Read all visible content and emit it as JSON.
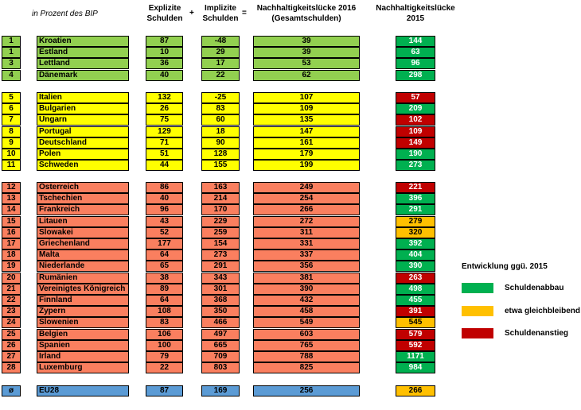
{
  "header": {
    "note": "in Prozent des BIP",
    "explicit": "Explizite\nSchulden",
    "plus": "+",
    "implicit": "Implizite\nSchulden",
    "equals": "=",
    "gap2016": "Nachhaltigkeitslücke 2016\n(Gesamtschulden)",
    "gap2015": "Nachhaltigkeitslücke\n2015"
  },
  "colors": {
    "green_group": "#92d050",
    "yellow_group": "#ffff00",
    "salmon_group": "#fa7f5f",
    "blue_group": "#5b9bd5",
    "abbau": "#00b050",
    "gleich": "#ffc000",
    "anstieg": "#c00000"
  },
  "legend": {
    "title": "Entwicklung ggü. 2015",
    "items": [
      {
        "label": "Schuldenabbau",
        "color": "#00b050"
      },
      {
        "label": "etwa gleichbleibend",
        "color": "#ffc000"
      },
      {
        "label": "Schuldenanstieg",
        "color": "#c00000"
      }
    ]
  },
  "chart_data": {
    "type": "table",
    "columns": [
      "Rang",
      "Land",
      "Explizite Schulden",
      "Implizite Schulden",
      "Nachhaltigkeitslücke 2016 (Gesamtschulden)",
      "Nachhaltigkeitslücke 2015"
    ],
    "rows": [
      {
        "rank": "1",
        "country": "Kroatien",
        "explicit": "87",
        "implicit": "-48",
        "gap2016": "39",
        "gap2015": "144",
        "group": "green",
        "trend": "abbau"
      },
      {
        "rank": "1",
        "country": "Estland",
        "explicit": "10",
        "implicit": "29",
        "gap2016": "39",
        "gap2015": "63",
        "group": "green",
        "trend": "abbau"
      },
      {
        "rank": "3",
        "country": "Lettland",
        "explicit": "36",
        "implicit": "17",
        "gap2016": "53",
        "gap2015": "96",
        "group": "green",
        "trend": "abbau"
      },
      {
        "rank": "4",
        "country": "Dänemark",
        "explicit": "40",
        "implicit": "22",
        "gap2016": "62",
        "gap2015": "298",
        "group": "green",
        "trend": "abbau"
      },
      {
        "rank": "5",
        "country": "Italien",
        "explicit": "132",
        "implicit": "-25",
        "gap2016": "107",
        "gap2015": "57",
        "group": "yellow",
        "trend": "anstieg"
      },
      {
        "rank": "6",
        "country": "Bulgarien",
        "explicit": "26",
        "implicit": "83",
        "gap2016": "109",
        "gap2015": "209",
        "group": "yellow",
        "trend": "abbau"
      },
      {
        "rank": "7",
        "country": "Ungarn",
        "explicit": "75",
        "implicit": "60",
        "gap2016": "135",
        "gap2015": "102",
        "group": "yellow",
        "trend": "anstieg"
      },
      {
        "rank": "8",
        "country": "Portugal",
        "explicit": "129",
        "implicit": "18",
        "gap2016": "147",
        "gap2015": "109",
        "group": "yellow",
        "trend": "anstieg"
      },
      {
        "rank": "9",
        "country": "Deutschland",
        "explicit": "71",
        "implicit": "90",
        "gap2016": "161",
        "gap2015": "149",
        "group": "yellow",
        "trend": "anstieg"
      },
      {
        "rank": "10",
        "country": "Polen",
        "explicit": "51",
        "implicit": "128",
        "gap2016": "179",
        "gap2015": "190",
        "group": "yellow",
        "trend": "abbau"
      },
      {
        "rank": "11",
        "country": "Schweden",
        "explicit": "44",
        "implicit": "155",
        "gap2016": "199",
        "gap2015": "273",
        "group": "yellow",
        "trend": "abbau"
      },
      {
        "rank": "12",
        "country": "Österreich",
        "explicit": "86",
        "implicit": "163",
        "gap2016": "249",
        "gap2015": "221",
        "group": "salmon",
        "trend": "anstieg"
      },
      {
        "rank": "13",
        "country": "Tschechien",
        "explicit": "40",
        "implicit": "214",
        "gap2016": "254",
        "gap2015": "396",
        "group": "salmon",
        "trend": "abbau"
      },
      {
        "rank": "14",
        "country": "Frankreich",
        "explicit": "96",
        "implicit": "170",
        "gap2016": "266",
        "gap2015": "291",
        "group": "salmon",
        "trend": "abbau"
      },
      {
        "rank": "15",
        "country": "Litauen",
        "explicit": "43",
        "implicit": "229",
        "gap2016": "272",
        "gap2015": "279",
        "group": "salmon",
        "trend": "gleich"
      },
      {
        "rank": "16",
        "country": "Slowakei",
        "explicit": "52",
        "implicit": "259",
        "gap2016": "311",
        "gap2015": "320",
        "group": "salmon",
        "trend": "gleich"
      },
      {
        "rank": "17",
        "country": "Griechenland",
        "explicit": "177",
        "implicit": "154",
        "gap2016": "331",
        "gap2015": "392",
        "group": "salmon",
        "trend": "abbau"
      },
      {
        "rank": "18",
        "country": "Malta",
        "explicit": "64",
        "implicit": "273",
        "gap2016": "337",
        "gap2015": "404",
        "group": "salmon",
        "trend": "abbau"
      },
      {
        "rank": "19",
        "country": "Niederlande",
        "explicit": "65",
        "implicit": "291",
        "gap2016": "356",
        "gap2015": "390",
        "group": "salmon",
        "trend": "abbau"
      },
      {
        "rank": "20",
        "country": "Rumänien",
        "explicit": "38",
        "implicit": "343",
        "gap2016": "381",
        "gap2015": "263",
        "group": "salmon",
        "trend": "anstieg"
      },
      {
        "rank": "21",
        "country": "Vereinigtes Königreich",
        "explicit": "89",
        "implicit": "301",
        "gap2016": "390",
        "gap2015": "498",
        "group": "salmon",
        "trend": "abbau"
      },
      {
        "rank": "22",
        "country": "Finnland",
        "explicit": "64",
        "implicit": "368",
        "gap2016": "432",
        "gap2015": "455",
        "group": "salmon",
        "trend": "abbau"
      },
      {
        "rank": "23",
        "country": "Zypern",
        "explicit": "108",
        "implicit": "350",
        "gap2016": "458",
        "gap2015": "391",
        "group": "salmon",
        "trend": "anstieg"
      },
      {
        "rank": "24",
        "country": "Slowenien",
        "explicit": "83",
        "implicit": "466",
        "gap2016": "549",
        "gap2015": "545",
        "group": "salmon",
        "trend": "gleich"
      },
      {
        "rank": "25",
        "country": "Belgien",
        "explicit": "106",
        "implicit": "497",
        "gap2016": "603",
        "gap2015": "579",
        "group": "salmon",
        "trend": "anstieg"
      },
      {
        "rank": "26",
        "country": "Spanien",
        "explicit": "100",
        "implicit": "665",
        "gap2016": "765",
        "gap2015": "592",
        "group": "salmon",
        "trend": "anstieg"
      },
      {
        "rank": "27",
        "country": "Irland",
        "explicit": "79",
        "implicit": "709",
        "gap2016": "788",
        "gap2015": "1171",
        "group": "salmon",
        "trend": "abbau"
      },
      {
        "rank": "28",
        "country": "Luxemburg",
        "explicit": "22",
        "implicit": "803",
        "gap2016": "825",
        "gap2015": "984",
        "group": "salmon",
        "trend": "abbau"
      },
      {
        "rank": "ø",
        "country": "EU28",
        "explicit": "87",
        "implicit": "169",
        "gap2016": "256",
        "gap2015": "266",
        "group": "blue",
        "trend": "gleich"
      }
    ]
  }
}
